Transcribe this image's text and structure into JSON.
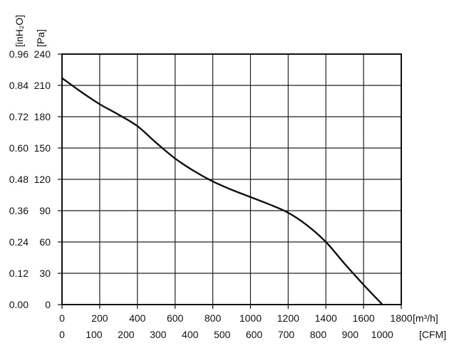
{
  "chart_data": {
    "type": "line",
    "grid": true,
    "axes": {
      "x_primary": {
        "unit_label": "[m³/h]",
        "ticks": [
          0,
          200,
          400,
          600,
          800,
          1000,
          1200,
          1400,
          1600,
          1800
        ],
        "range": [
          0,
          1800
        ]
      },
      "x_secondary": {
        "unit_label": "[CFM]",
        "ticks": [
          0,
          100,
          200,
          300,
          400,
          500,
          600,
          700,
          800,
          900,
          1000
        ]
      },
      "y_primary": {
        "unit_label": "[Pa]",
        "ticks": [
          0,
          30,
          60,
          90,
          120,
          150,
          180,
          210,
          240
        ],
        "range": [
          0,
          240
        ]
      },
      "y_secondary": {
        "unit_label": "[inH₂O]",
        "ticks": [
          "0.00",
          "0.12",
          "0.24",
          "0.36",
          "0.48",
          "0.60",
          "0.72",
          "0.84",
          "0.96"
        ]
      }
    },
    "series": [
      {
        "color": "#111111",
        "x": [
          0,
          100,
          200,
          300,
          400,
          500,
          600,
          700,
          800,
          900,
          1000,
          1100,
          1200,
          1300,
          1400,
          1500,
          1600,
          1700
        ],
        "y": [
          217,
          204,
          192,
          182,
          171,
          155,
          140,
          128,
          118,
          110,
          103,
          96,
          88,
          76,
          60,
          39,
          19,
          0
        ]
      }
    ]
  }
}
